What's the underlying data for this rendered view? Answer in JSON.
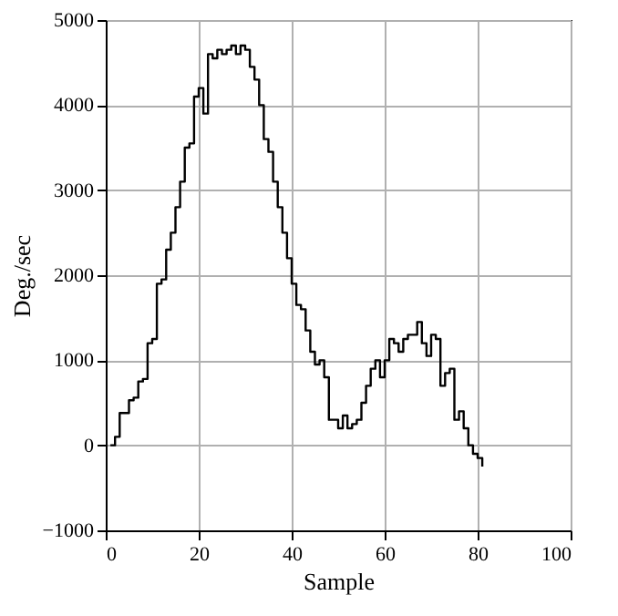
{
  "chart_data": {
    "type": "step",
    "xlabel": "Sample",
    "ylabel": "Deg./sec",
    "x": [
      1,
      2,
      3,
      4,
      5,
      6,
      7,
      8,
      9,
      10,
      11,
      12,
      13,
      14,
      15,
      16,
      17,
      18,
      19,
      20,
      21,
      22,
      23,
      24,
      25,
      26,
      27,
      28,
      29,
      30,
      31,
      32,
      33,
      34,
      35,
      36,
      37,
      38,
      39,
      40,
      41,
      42,
      43,
      44,
      45,
      46,
      47,
      48,
      49,
      50,
      51,
      52,
      53,
      54,
      55,
      56,
      57,
      58,
      59,
      60,
      61,
      62,
      63,
      64,
      65,
      66,
      67,
      68,
      69,
      70,
      71,
      72,
      73,
      74,
      75,
      76,
      77,
      78,
      79,
      80,
      81
    ],
    "series": [
      {
        "color": "#000000",
        "values": [
          0,
          100,
          380,
          380,
          530,
          560,
          750,
          780,
          1200,
          1250,
          1900,
          1950,
          2300,
          2500,
          2800,
          3100,
          3500,
          3550,
          4100,
          4200,
          3900,
          4600,
          4550,
          4650,
          4600,
          4650,
          4700,
          4600,
          4700,
          4650,
          4450,
          4300,
          4000,
          3600,
          3450,
          3100,
          2800,
          2500,
          2200,
          1900,
          1650,
          1600,
          1350,
          1100,
          950,
          1000,
          800,
          300,
          300,
          200,
          350,
          200,
          250,
          300,
          500,
          700,
          900,
          1000,
          800,
          1000,
          1250,
          1200,
          1100,
          1250,
          1300,
          1300,
          1450,
          1200,
          1050,
          1300,
          1250,
          700,
          850,
          900,
          300,
          400,
          200,
          0,
          -100,
          -150,
          -250
        ]
      }
    ],
    "xlim": [
      0,
      100
    ],
    "xticks": [
      0,
      20,
      40,
      60,
      80,
      100
    ],
    "ylim": [
      -1000,
      5000
    ],
    "yticks": [
      -1000,
      0,
      1000,
      2000,
      3000,
      4000,
      5000
    ],
    "grid": true
  }
}
